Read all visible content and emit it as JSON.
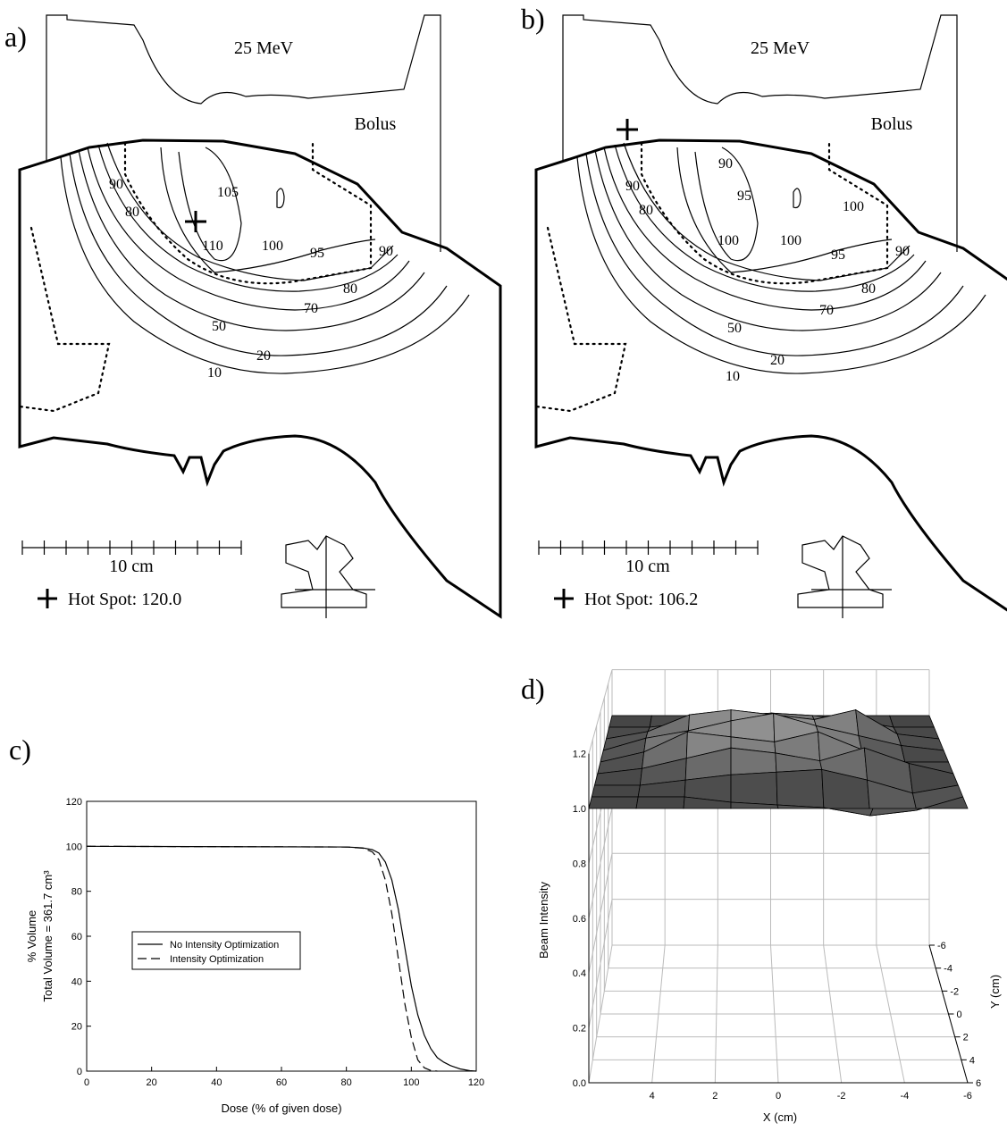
{
  "panels": [
    {
      "panel": "a)",
      "energy": "25 MeV",
      "bolus": "Bolus",
      "contour_labels": [
        90,
        80,
        105,
        110,
        100,
        95,
        90,
        80,
        70,
        50,
        20,
        10
      ],
      "scale": "10 cm",
      "hot_spot": "Hot Spot: 120.0"
    },
    {
      "panel": "b)",
      "energy": "25 MeV",
      "bolus": "Bolus",
      "contour_labels": [
        90,
        90,
        80,
        95,
        100,
        100,
        100,
        95,
        90,
        80,
        70,
        50,
        20,
        10
      ],
      "scale": "10 cm",
      "hot_spot": "Hot Spot: 106.2"
    }
  ],
  "chart_data": [
    {
      "panel": "c)",
      "type": "line",
      "xlabel": "Dose (% of given dose)",
      "ylabel": [
        "% Volume",
        "Total Volume = 361.7 cm³"
      ],
      "xlim": [
        0,
        120
      ],
      "ylim": [
        0,
        120
      ],
      "xticks": [
        0,
        20,
        40,
        60,
        80,
        100,
        120
      ],
      "yticks": [
        0,
        20,
        40,
        60,
        80,
        100,
        120
      ],
      "legend": "center-left",
      "series": [
        {
          "name": "No Intensity Optimization",
          "color": "#000000",
          "dash": false,
          "x": [
            0,
            80,
            85,
            88,
            90,
            92,
            94,
            96,
            98,
            100,
            102,
            104,
            106,
            108,
            110,
            112,
            115,
            118,
            120
          ],
          "values": [
            100,
            99.7,
            99.3,
            98.5,
            97,
            93,
            85,
            72,
            55,
            38,
            25,
            16,
            10,
            6,
            4,
            2.5,
            1,
            0.2,
            0
          ]
        },
        {
          "name": "Intensity Optimization",
          "color": "#000000",
          "dash": true,
          "x": [
            0,
            80,
            85,
            88,
            90,
            92,
            94,
            96,
            98,
            100,
            102,
            104,
            106,
            108
          ],
          "values": [
            100,
            99.7,
            99.2,
            97.5,
            94,
            85,
            70,
            50,
            30,
            15,
            5,
            1.5,
            0.3,
            0
          ]
        }
      ]
    },
    {
      "panel": "d)",
      "type": "surface",
      "xlabel": "X (cm)",
      "ylabel": "Y (cm)",
      "zlabel": "Beam Intensity",
      "xlim": [
        6,
        -6
      ],
      "ylim": [
        -6,
        6
      ],
      "zlim": [
        0,
        1.2
      ],
      "xticks": [
        4,
        2,
        0,
        -2,
        -4,
        -6
      ],
      "yticks": [
        -6,
        -4,
        -2,
        0,
        2,
        4,
        6
      ],
      "zticks": [
        {
          "value": 0,
          "label": "0.0"
        },
        0.2,
        0.4,
        0.6,
        0.8,
        {
          "value": 1,
          "label": "1.0"
        },
        1.2
      ],
      "x": [
        6,
        4.5,
        3,
        1.5,
        0,
        -1.5,
        -3,
        -4.5,
        -6
      ],
      "y": [
        -6,
        -4.5,
        -3,
        -1.5,
        0,
        1.5,
        3,
        4.5,
        6
      ],
      "z": [
        [
          1,
          1,
          1,
          1,
          1,
          1,
          1,
          1,
          1
        ],
        [
          1,
          1,
          1.02,
          1.05,
          1.06,
          1.05,
          1.03,
          1,
          1
        ],
        [
          1,
          1.03,
          1.1,
          1.12,
          1.1,
          1.08,
          1.12,
          1.02,
          1
        ],
        [
          1,
          1.05,
          1.08,
          1.12,
          1.15,
          1.1,
          1.06,
          1.02,
          1
        ],
        [
          1,
          1.04,
          1.12,
          1.1,
          1.08,
          1.12,
          1.05,
          1,
          1
        ],
        [
          1,
          1.02,
          1.06,
          1.1,
          1.08,
          1.05,
          1.1,
          1.04,
          1
        ],
        [
          1,
          1,
          1.02,
          1.04,
          1.05,
          1.06,
          1.02,
          0.97,
          1
        ],
        [
          1,
          1,
          1,
          0.98,
          0.97,
          0.96,
          0.93,
          0.95,
          1
        ],
        [
          1,
          1,
          1,
          1,
          1,
          1,
          1,
          1,
          1
        ]
      ]
    }
  ]
}
